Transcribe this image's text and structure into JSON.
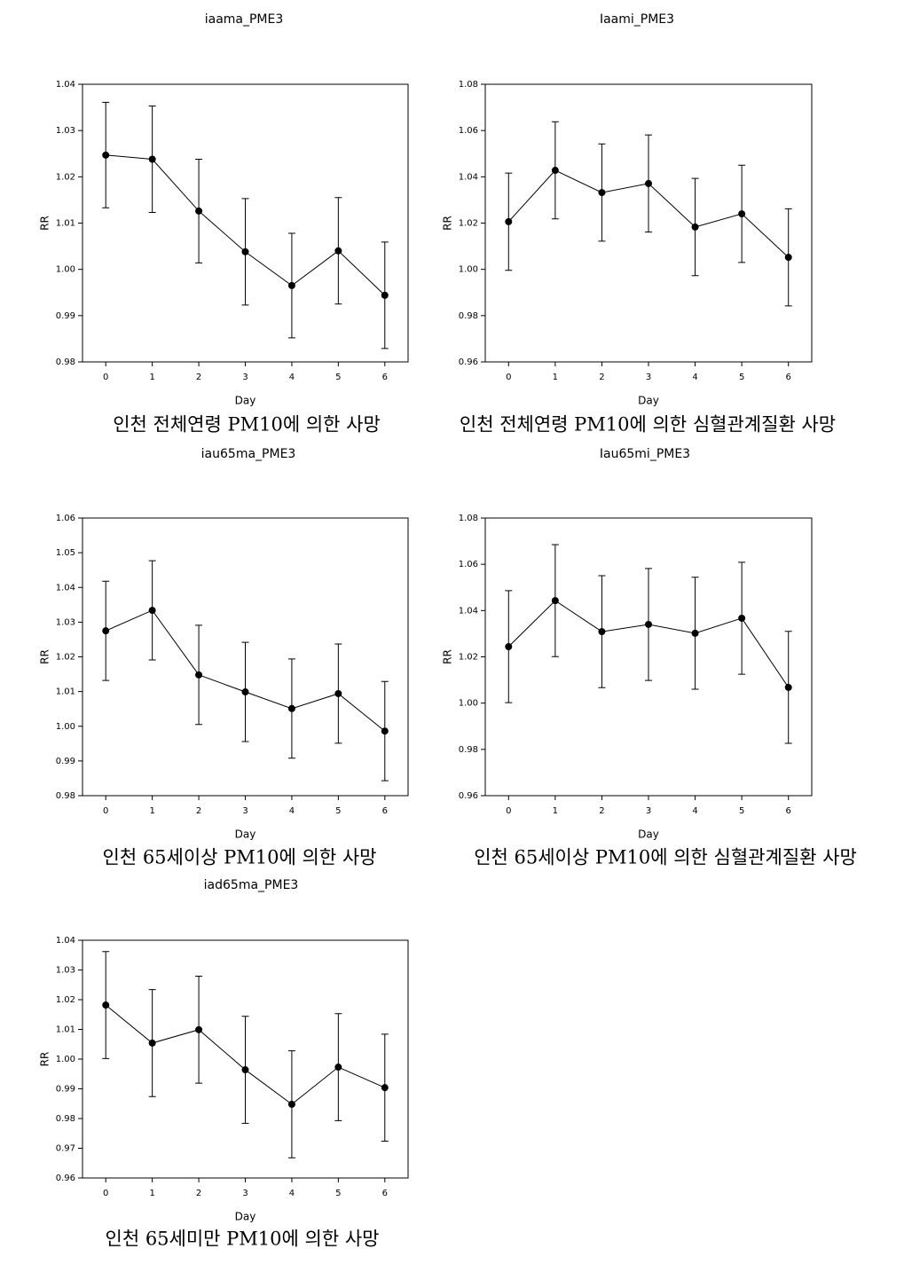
{
  "chart_data": [
    {
      "type": "line",
      "title": "iaama_PME3",
      "caption": "인천 전체연령 PM10에 의한 사망",
      "xlabel": "Day",
      "ylabel": "RR",
      "color": "#000000",
      "x": [
        0,
        1,
        2,
        3,
        4,
        5,
        6
      ],
      "values": [
        1.0247,
        1.0238,
        1.0126,
        1.0038,
        0.9965,
        1.004,
        0.9944
      ],
      "errors": [
        0.0114,
        0.0115,
        0.0112,
        0.0115,
        0.0113,
        0.0115,
        0.0115
      ],
      "xlim": [
        -0.5,
        6.5
      ],
      "xticks": [
        0,
        1,
        2,
        3,
        4,
        5,
        6
      ],
      "ylim": [
        0.98,
        1.04
      ],
      "yticks": [
        0.98,
        0.99,
        {
          "value": 1,
          "label": "1.00"
        },
        1.01,
        1.02,
        1.03,
        1.04
      ]
    },
    {
      "type": "line",
      "title": "Iaami_PME3",
      "caption": "인천 전체연령 PM10에 의한 심혈관계질환 사망",
      "xlabel": "Day",
      "ylabel": "RR",
      "color": "#000000",
      "x": [
        0,
        1,
        2,
        3,
        4,
        5,
        6
      ],
      "values": [
        1.0206,
        1.0428,
        1.0332,
        1.0371,
        1.0183,
        1.024,
        1.0052
      ],
      "errors": [
        0.021,
        0.021,
        0.021,
        0.021,
        0.021,
        0.021,
        0.021
      ],
      "xlim": [
        -0.5,
        6.5
      ],
      "xticks": [
        0,
        1,
        2,
        3,
        4,
        5,
        6
      ],
      "ylim": [
        0.96,
        1.08
      ],
      "yticks": [
        0.96,
        0.98,
        {
          "value": 1,
          "label": "1.00"
        },
        1.02,
        1.04,
        1.06,
        1.08
      ]
    },
    {
      "type": "line",
      "title": "iau65ma_PME3",
      "caption": "인천 65세이상 PM10에 의한 사망",
      "xlabel": "Day",
      "ylabel": "RR",
      "color": "#000000",
      "x": [
        0,
        1,
        2,
        3,
        4,
        5,
        6
      ],
      "values": [
        1.0275,
        1.0334,
        1.0148,
        1.0099,
        1.0051,
        1.0094,
        0.9986
      ],
      "errors": [
        0.0143,
        0.0143,
        0.0143,
        0.0143,
        0.0143,
        0.0143,
        0.0143
      ],
      "xlim": [
        -0.5,
        6.5
      ],
      "xticks": [
        0,
        1,
        2,
        3,
        4,
        5,
        6
      ],
      "ylim": [
        0.98,
        1.06
      ],
      "yticks": [
        0.98,
        0.99,
        {
          "value": 1,
          "label": "1.00"
        },
        1.01,
        1.02,
        1.03,
        1.04,
        1.05,
        1.06
      ]
    },
    {
      "type": "line",
      "title": "Iau65mi_PME3",
      "caption": "인천 65세이상 PM10에 의한 심혈관계질환 사망",
      "xlabel": "Day",
      "ylabel": "RR",
      "color": "#000000",
      "x": [
        0,
        1,
        2,
        3,
        4,
        5,
        6
      ],
      "values": [
        1.0244,
        1.0443,
        1.0309,
        1.034,
        1.0302,
        1.0367,
        1.0068
      ],
      "errors": [
        0.0242,
        0.0242,
        0.0242,
        0.0242,
        0.0242,
        0.0242,
        0.0242
      ],
      "xlim": [
        -0.5,
        6.5
      ],
      "xticks": [
        0,
        1,
        2,
        3,
        4,
        5,
        6
      ],
      "ylim": [
        0.96,
        1.08
      ],
      "yticks": [
        0.96,
        0.98,
        {
          "value": 1,
          "label": "1.00"
        },
        1.02,
        1.04,
        1.06,
        1.08
      ]
    },
    {
      "type": "line",
      "title": "iad65ma_PME3",
      "caption": "인천 65세미만 PM10에 의한 사망",
      "xlabel": "Day",
      "ylabel": "RR",
      "color": "#000000",
      "x": [
        0,
        1,
        2,
        3,
        4,
        5,
        6
      ],
      "values": [
        1.0182,
        1.0054,
        1.0099,
        0.9964,
        0.9848,
        0.9973,
        0.9904
      ],
      "errors": [
        0.018,
        0.018,
        0.018,
        0.018,
        0.018,
        0.018,
        0.018
      ],
      "xlim": [
        -0.5,
        6.5
      ],
      "xticks": [
        0,
        1,
        2,
        3,
        4,
        5,
        6
      ],
      "ylim": [
        0.96,
        1.04
      ],
      "yticks": [
        0.96,
        0.97,
        0.98,
        0.99,
        {
          "value": 1,
          "label": "1.00"
        },
        1.01,
        1.02,
        1.03,
        1.04
      ]
    }
  ]
}
